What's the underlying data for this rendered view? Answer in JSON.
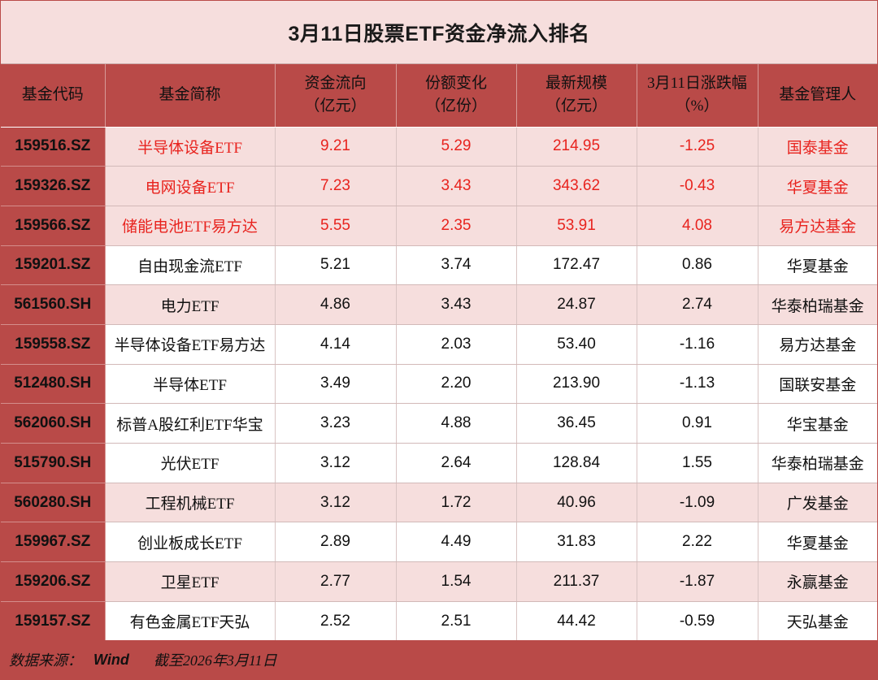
{
  "title": "3月11日股票ETF资金净流入排名",
  "headers": [
    [
      "基金代码"
    ],
    [
      "基金简称"
    ],
    [
      "资金流向",
      "（亿元）"
    ],
    [
      "份额变化",
      "（亿份）"
    ],
    [
      "最新规模",
      "（亿元）"
    ],
    [
      "3月11日涨跌幅",
      "（%）"
    ],
    [
      "基金管理人"
    ]
  ],
  "rows": [
    {
      "code": "159516.SZ",
      "name": "半导体设备ETF",
      "flow": "9.21",
      "share_change": "5.29",
      "scale": "214.95",
      "pct": "-1.25",
      "manager": "国泰基金"
    },
    {
      "code": "159326.SZ",
      "name": "电网设备ETF",
      "flow": "7.23",
      "share_change": "3.43",
      "scale": "343.62",
      "pct": "-0.43",
      "manager": "华夏基金"
    },
    {
      "code": "159566.SZ",
      "name": "储能电池ETF易方达",
      "flow": "5.55",
      "share_change": "2.35",
      "scale": "53.91",
      "pct": "4.08",
      "manager": "易方达基金"
    },
    {
      "code": "159201.SZ",
      "name": "自由现金流ETF",
      "flow": "5.21",
      "share_change": "3.74",
      "scale": "172.47",
      "pct": "0.86",
      "manager": "华夏基金"
    },
    {
      "code": "561560.SH",
      "name": "电力ETF",
      "flow": "4.86",
      "share_change": "3.43",
      "scale": "24.87",
      "pct": "2.74",
      "manager": "华泰柏瑞基金"
    },
    {
      "code": "159558.SZ",
      "name": "半导体设备ETF易方达",
      "flow": "4.14",
      "share_change": "2.03",
      "scale": "53.40",
      "pct": "-1.16",
      "manager": "易方达基金"
    },
    {
      "code": "512480.SH",
      "name": "半导体ETF",
      "flow": "3.49",
      "share_change": "2.20",
      "scale": "213.90",
      "pct": "-1.13",
      "manager": "国联安基金"
    },
    {
      "code": "562060.SH",
      "name": "标普A股红利ETF华宝",
      "flow": "3.23",
      "share_change": "4.88",
      "scale": "36.45",
      "pct": "0.91",
      "manager": "华宝基金"
    },
    {
      "code": "515790.SH",
      "name": "光伏ETF",
      "flow": "3.12",
      "share_change": "2.64",
      "scale": "128.84",
      "pct": "1.55",
      "manager": "华泰柏瑞基金"
    },
    {
      "code": "560280.SH",
      "name": "工程机械ETF",
      "flow": "3.12",
      "share_change": "1.72",
      "scale": "40.96",
      "pct": "-1.09",
      "manager": "广发基金"
    },
    {
      "code": "159967.SZ",
      "name": "创业板成长ETF",
      "flow": "2.89",
      "share_change": "4.49",
      "scale": "31.83",
      "pct": "2.22",
      "manager": "华夏基金"
    },
    {
      "code": "159206.SZ",
      "name": "卫星ETF",
      "flow": "2.77",
      "share_change": "1.54",
      "scale": "211.37",
      "pct": "-1.87",
      "manager": "永赢基金"
    },
    {
      "code": "159157.SZ",
      "name": "有色金属ETF天弘",
      "flow": "2.52",
      "share_change": "2.51",
      "scale": "44.42",
      "pct": "-0.59",
      "manager": "天弘基金"
    }
  ],
  "footer": {
    "source_label": "数据来源：",
    "source_value": "Wind",
    "as_of": "截至2026年3月11日"
  },
  "colors": {
    "header_bg": "#b94a48",
    "shade_bg": "#f6dedd",
    "highlight_text": "#e8231e"
  }
}
